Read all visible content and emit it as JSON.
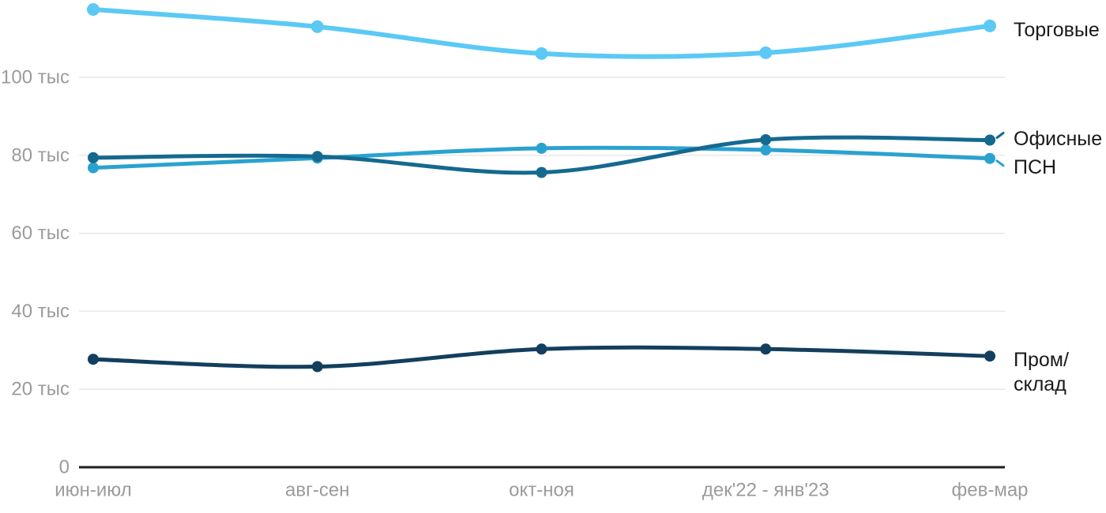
{
  "chart_data": {
    "type": "line",
    "title": "",
    "unit_suffix": "тыс",
    "x_categories": [
      "июн-июл",
      "авг-сен",
      "окт-ноя",
      "дек'22 - янв'23",
      "фев-мар"
    ],
    "y_ticks": [
      {
        "value": 0,
        "label": "0"
      },
      {
        "value": 20000,
        "label": "20 тыс"
      },
      {
        "value": 40000,
        "label": "40 тыс"
      },
      {
        "value": 60000,
        "label": "60 тыс"
      },
      {
        "value": 80000,
        "label": "80 тыс"
      },
      {
        "value": 100000,
        "label": "100 тыс"
      }
    ],
    "y_axis_range": [
      0,
      120000
    ],
    "grid": true,
    "legend_position": "right-inline-labels",
    "series": [
      {
        "key": "torgovye",
        "name": "Торговые",
        "label_lines": [
          "Торговые"
        ],
        "color": "#5cc9f5",
        "values": [
          117400,
          113000,
          106100,
          106300,
          113200
        ]
      },
      {
        "key": "ofisnye",
        "name": "Офисные",
        "label_lines": [
          "Офисные"
        ],
        "color": "#15698f",
        "values": [
          79400,
          79700,
          75600,
          84000,
          83900
        ]
      },
      {
        "key": "psn",
        "name": "ПСН",
        "label_lines": [
          "ПСН"
        ],
        "color": "#2aa2d0",
        "values": [
          76800,
          79300,
          81800,
          81400,
          79200
        ]
      },
      {
        "key": "prom-sklad",
        "name": "Пром/склад",
        "label_lines": [
          "Пром/",
          "склад"
        ],
        "color": "#133f5e",
        "values": [
          27700,
          25800,
          30300,
          30300,
          28500
        ]
      }
    ],
    "colors": {
      "gridline": "#e7e7e7",
      "axis": "#1f1f1f",
      "tick_text": "#9b9b9b",
      "label_text": "#1a1a1a",
      "background": "#ffffff"
    }
  }
}
